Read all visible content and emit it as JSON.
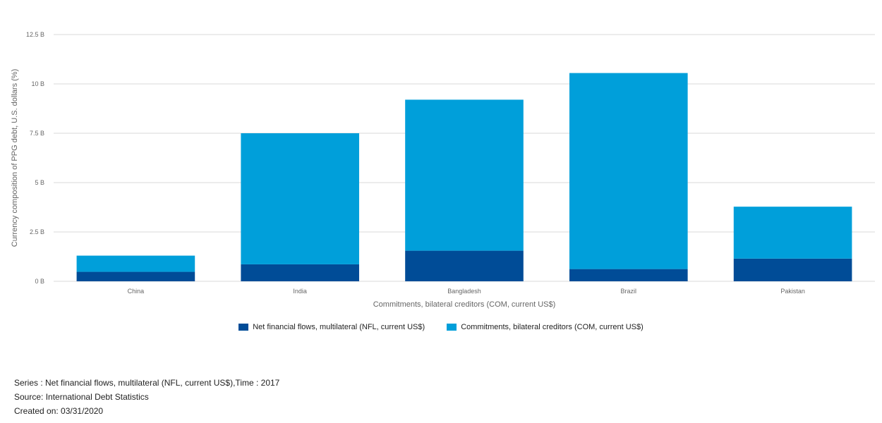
{
  "chart_data": {
    "type": "bar",
    "stacked": true,
    "categories": [
      "China",
      "India",
      "Bangladesh",
      "Brazil",
      "Pakistan"
    ],
    "series": [
      {
        "name": "Net financial flows, multilateral (NFL, current US$)",
        "color": "#004C97",
        "values": [
          0.48,
          0.86,
          1.55,
          0.62,
          1.15
        ]
      },
      {
        "name": "Commitments, bilateral creditors (COM, current US$)",
        "color": "#009FDA",
        "values": [
          0.82,
          6.64,
          7.65,
          9.93,
          2.63
        ]
      }
    ],
    "xlabel": "Commitments, bilateral creditors (COM, current US$)",
    "ylabel": "Currency composition of PPG debt, U.S. dollars (%)",
    "yticks": [
      "0 B",
      "2.5 B",
      "5 B",
      "7.5 B",
      "10 B",
      "12.5 B"
    ],
    "ylim": [
      0,
      12.5
    ],
    "grid": true,
    "legend_position": "bottom"
  },
  "footer": {
    "series_line": "Series : Net financial flows, multilateral (NFL, current US$),Time : 2017",
    "source_line": "Source: International Debt Statistics",
    "created_line": "Created on: 03/31/2020"
  }
}
